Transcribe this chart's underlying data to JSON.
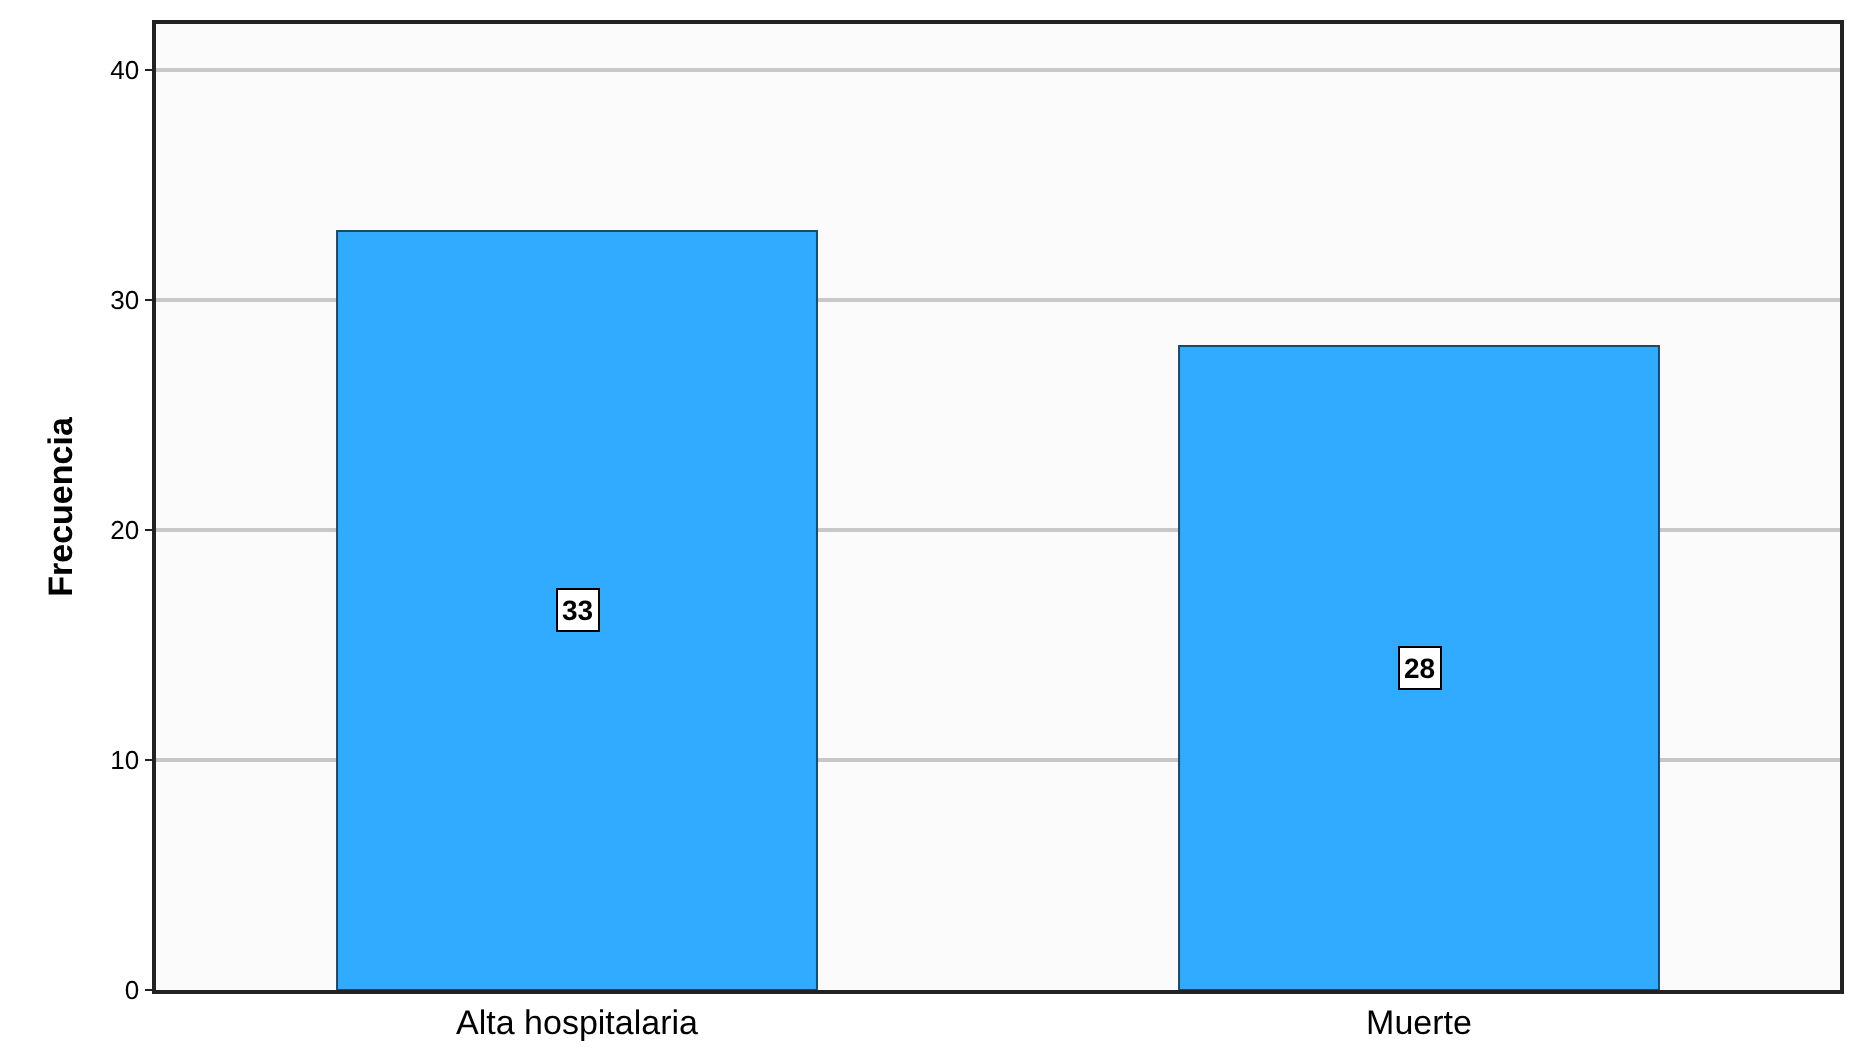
{
  "chart_data": {
    "type": "bar",
    "ylabel": "Frecuencia",
    "categories": [
      "Alta hospitalaria",
      "Muerte"
    ],
    "values": [
      33,
      28
    ],
    "color": "#30abff",
    "ylim": [
      0,
      42
    ],
    "yticks": [
      0,
      10,
      20,
      30,
      40
    ],
    "grid": "y",
    "data_labels": true
  }
}
